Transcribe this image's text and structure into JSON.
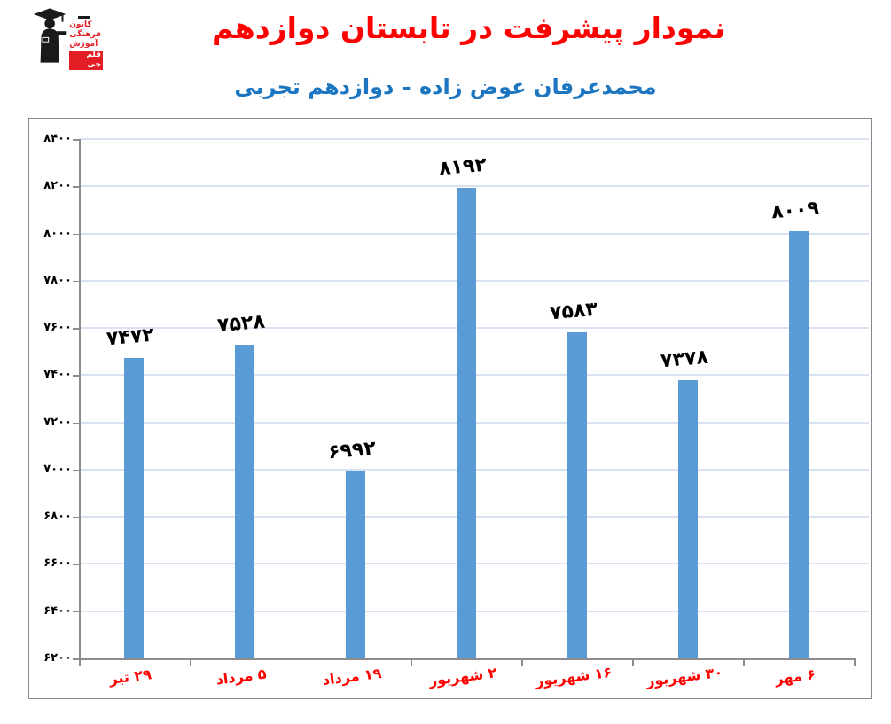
{
  "header": {
    "title": "نمودار پیشرفت در تابستان دوازدهم",
    "subtitle": "محمدعرفان عوض زاده – دوازدهم تجربی",
    "title_color": "#ff0000",
    "subtitle_color": "#1b75c0"
  },
  "logo": {
    "lines": [
      "کانون",
      "فرهنگی",
      "آموزش"
    ],
    "badge": "قلم چی",
    "red": "#e31e24"
  },
  "chart_data": {
    "type": "bar",
    "title": "",
    "xlabel": "",
    "ylabel": "",
    "categories": [
      "۲۹ تیر",
      "۵ مرداد",
      "۱۹ مرداد",
      "۲ شهریور",
      "۱۶ شهریور",
      "۳۰ شهریور",
      "۶ مهر"
    ],
    "values": [
      7472,
      7528,
      6992,
      8192,
      7583,
      7378,
      8009
    ],
    "value_labels": [
      "۷۴۷۲",
      "۷۵۲۸",
      "۶۹۹۲",
      "۸۱۹۲",
      "۷۵۸۳",
      "۷۳۷۸",
      "۸۰۰۹"
    ],
    "ylim": [
      6200,
      8400
    ],
    "ytick_step": 200,
    "yticks": [
      6200,
      6400,
      6600,
      6800,
      7000,
      7200,
      7400,
      7600,
      7800,
      8000,
      8200,
      8400
    ],
    "ytick_labels": [
      "۶۲۰۰",
      "۶۴۰۰",
      "۶۶۰۰",
      "۶۸۰۰",
      "۷۰۰۰",
      "۷۲۰۰",
      "۷۴۰۰",
      "۷۶۰۰",
      "۷۸۰۰",
      "۸۰۰۰",
      "۸۲۰۰",
      "۸۴۰۰"
    ],
    "grid": true,
    "legend": false,
    "bar_color": "#5b9bd5",
    "gridline_color": "#d9e2f3",
    "axis_color": "#8c8c8c",
    "xtick_label_color": "#ff0000",
    "ytick_label_color": "#000000",
    "data_label_color": "#000000"
  }
}
